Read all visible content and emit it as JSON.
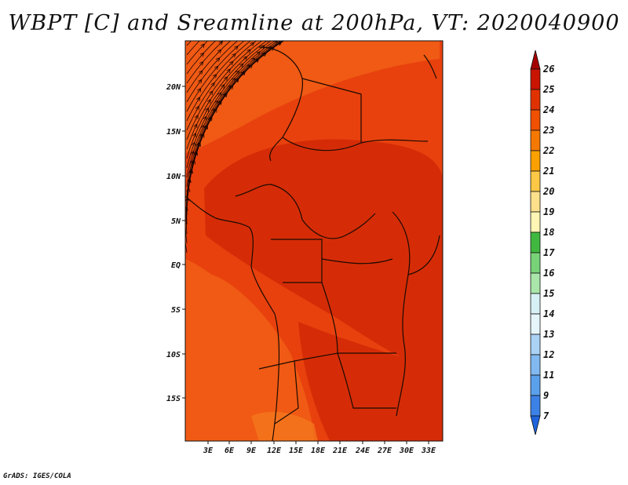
{
  "title": "WBPT [C] and Sreamline at 200hPa, VT: 2020040900",
  "credit": "GrADS: IGES/COLA",
  "map": {
    "variable": "WBPT",
    "units": "C",
    "level": "200hPa",
    "valid_time": "2020040900",
    "lat_ticks": [
      "20N",
      "15N",
      "10N",
      "5N",
      "EQ",
      "5S",
      "10S",
      "15S"
    ],
    "lon_ticks": [
      "3E",
      "6E",
      "9E",
      "12E",
      "15E",
      "18E",
      "21E",
      "24E",
      "27E",
      "30E",
      "33E"
    ],
    "colors": {
      "background": "#e8410e",
      "darker_region": "#d52c07",
      "lighter_region": "#f05a14",
      "coastline": "#1a0a00",
      "streamline": "#1a0500"
    }
  },
  "colorbar": {
    "levels": [
      "26",
      "25",
      "24",
      "23",
      "22",
      "21",
      "20",
      "19",
      "18",
      "17",
      "16",
      "15",
      "14",
      "13",
      "12",
      "11",
      "9",
      "7"
    ],
    "colors": [
      "#a50000",
      "#c81400",
      "#e03200",
      "#f05000",
      "#f57800",
      "#faa000",
      "#fcc846",
      "#fde08c",
      "#fff5b4",
      "#40b840",
      "#78d278",
      "#aae6aa",
      "#d7f0f5",
      "#e6f5fa",
      "#aad2f5",
      "#82b9f0",
      "#5aa0eb",
      "#3c82e6",
      "#1e64dc"
    ]
  }
}
